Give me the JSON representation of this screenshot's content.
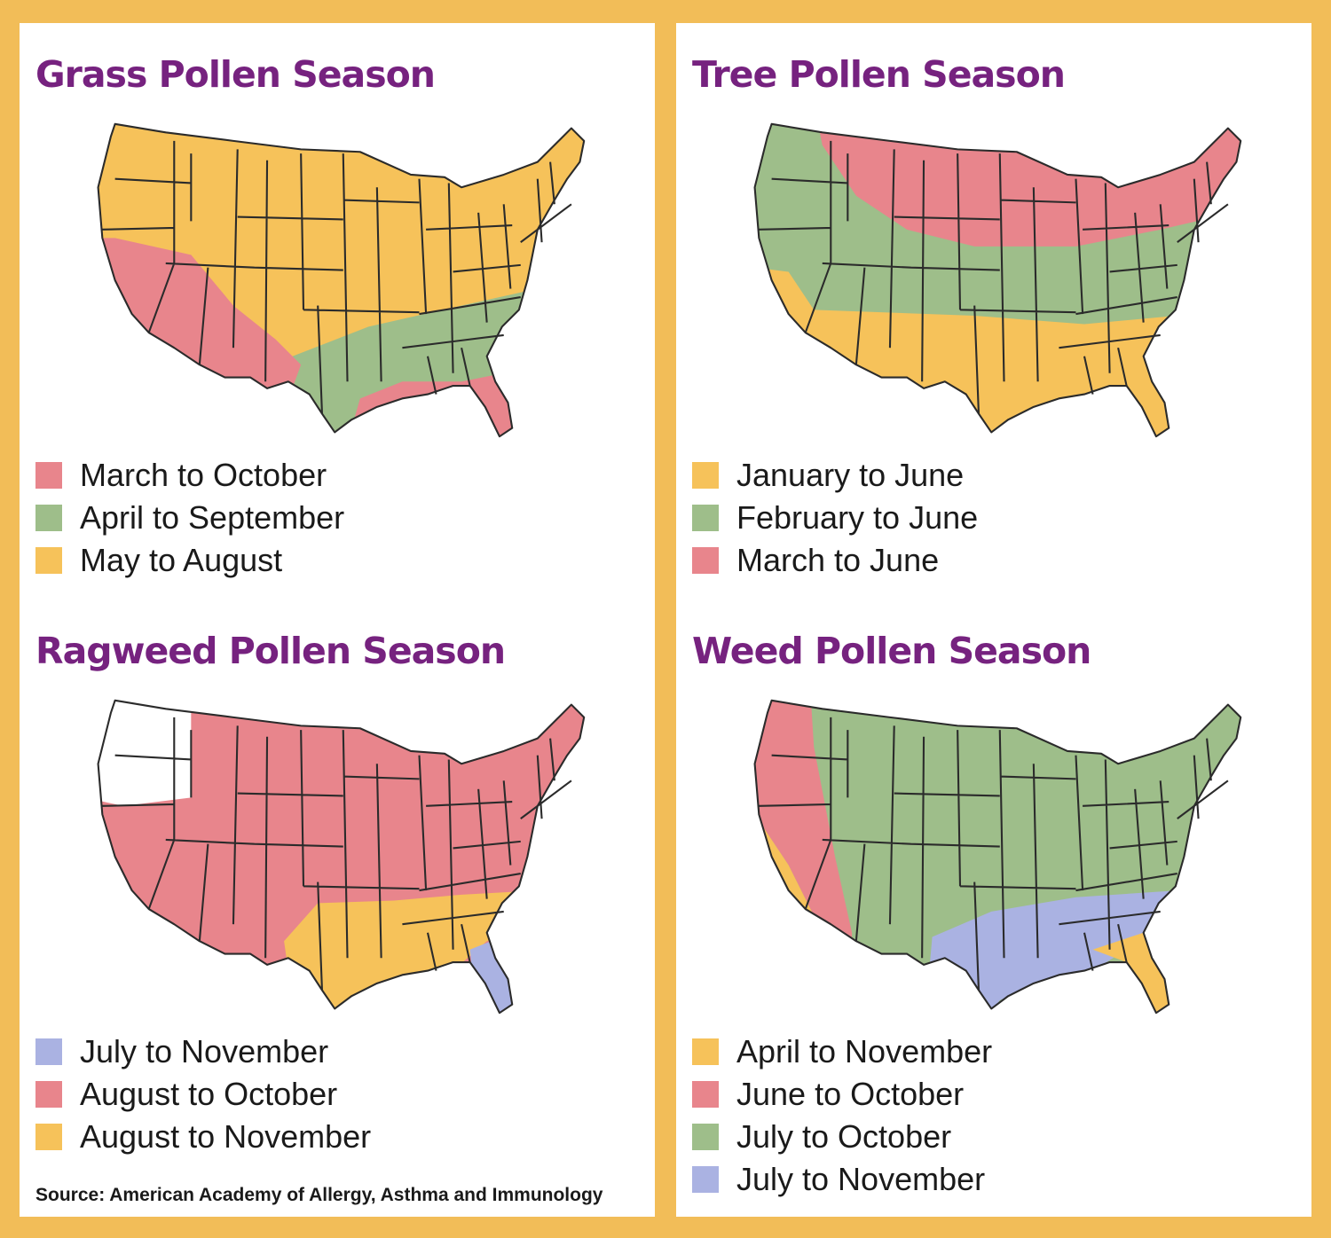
{
  "colors": {
    "border": "#f2bd58",
    "title": "#76227f",
    "pink": "#e8858c",
    "green": "#9ebe8a",
    "orange": "#f6c25a",
    "blue": "#aab2e2",
    "white": "#ffffff"
  },
  "maps": [
    {
      "title": "Grass Pollen Season",
      "legend": [
        {
          "label": "March to October",
          "color": "#e8858c"
        },
        {
          "label": "April to September",
          "color": "#9ebe8a"
        },
        {
          "label": "May to August",
          "color": "#f6c25a"
        }
      ]
    },
    {
      "title": "Tree Pollen Season",
      "legend": [
        {
          "label": "January to June",
          "color": "#f6c25a"
        },
        {
          "label": "February to June",
          "color": "#9ebe8a"
        },
        {
          "label": "March to June",
          "color": "#e8858c"
        }
      ]
    },
    {
      "title": "Ragweed Pollen Season",
      "legend": [
        {
          "label": "July to November",
          "color": "#aab2e2"
        },
        {
          "label": "August to October",
          "color": "#e8858c"
        },
        {
          "label": "August to November",
          "color": "#f6c25a"
        }
      ]
    },
    {
      "title": "Weed Pollen Season",
      "legend": [
        {
          "label": "April to November",
          "color": "#f6c25a"
        },
        {
          "label": "June to October",
          "color": "#e8858c"
        },
        {
          "label": "July to October",
          "color": "#9ebe8a"
        },
        {
          "label": "July to November",
          "color": "#aab2e2"
        }
      ]
    }
  ],
  "source": "Source: American Academy of Allergy, Asthma and Immunology"
}
